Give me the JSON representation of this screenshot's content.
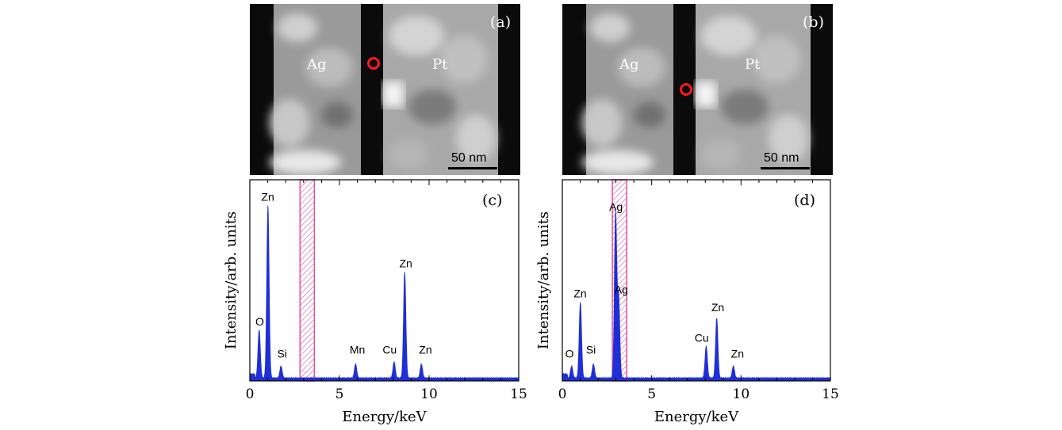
{
  "panels": {
    "a": {
      "label": "(a)",
      "metal_left": "Ag",
      "metal_right": "Pt",
      "scalebar": "50 nm"
    },
    "b": {
      "label": "(b)",
      "metal_left": "Ag",
      "metal_right": "Pt",
      "scalebar": "50 nm"
    }
  },
  "colors": {
    "spectrum": "#1f2fd6",
    "highlight": "#e0509a",
    "marker": "#ff1a1a"
  },
  "chart_data": [
    {
      "type": "area",
      "panel_label": "(c)",
      "xlabel": "Energy/keV",
      "ylabel": "Intensity/arb. units",
      "xlim": [
        0,
        15
      ],
      "xticks": [
        0,
        5,
        10,
        15
      ],
      "highlight_band": [
        2.8,
        3.6
      ],
      "peaks": [
        {
          "x": 0.52,
          "height": 0.24
        },
        {
          "x": 1.01,
          "height": 0.86
        },
        {
          "x": 1.74,
          "height": 0.06
        },
        {
          "x": 5.9,
          "height": 0.07
        },
        {
          "x": 8.05,
          "height": 0.08
        },
        {
          "x": 8.64,
          "height": 0.53
        },
        {
          "x": 9.57,
          "height": 0.07
        }
      ],
      "annotations": [
        {
          "text": "Zn",
          "x": 1.0,
          "y": 0.88
        },
        {
          "text": "O",
          "x": 0.55,
          "y": 0.26
        },
        {
          "text": "Si",
          "x": 1.8,
          "y": 0.1
        },
        {
          "text": "Mn",
          "x": 6.0,
          "y": 0.12
        },
        {
          "text": "Cu",
          "x": 7.8,
          "y": 0.12
        },
        {
          "text": "Zn",
          "x": 8.7,
          "y": 0.55
        },
        {
          "text": "Zn",
          "x": 9.8,
          "y": 0.12
        }
      ]
    },
    {
      "type": "area",
      "panel_label": "(d)",
      "xlabel": "Energy/keV",
      "ylabel": "Intensity/arb. units",
      "xlim": [
        0,
        15
      ],
      "xticks": [
        0,
        5,
        10,
        15
      ],
      "highlight_band": [
        2.8,
        3.6
      ],
      "peaks": [
        {
          "x": 0.52,
          "height": 0.06
        },
        {
          "x": 1.01,
          "height": 0.38
        },
        {
          "x": 1.74,
          "height": 0.07
        },
        {
          "x": 2.98,
          "height": 0.82
        },
        {
          "x": 3.15,
          "height": 0.4
        },
        {
          "x": 8.05,
          "height": 0.16
        },
        {
          "x": 8.64,
          "height": 0.3
        },
        {
          "x": 9.57,
          "height": 0.06
        }
      ],
      "annotations": [
        {
          "text": "Zn",
          "x": 1.0,
          "y": 0.4
        },
        {
          "text": "O",
          "x": 0.4,
          "y": 0.1
        },
        {
          "text": "Si",
          "x": 1.6,
          "y": 0.12
        },
        {
          "text": "Ag",
          "x": 3.0,
          "y": 0.83
        },
        {
          "text": "Ag",
          "x": 3.3,
          "y": 0.42
        },
        {
          "text": "Cu",
          "x": 7.8,
          "y": 0.18
        },
        {
          "text": "Zn",
          "x": 8.7,
          "y": 0.33
        },
        {
          "text": "Zn",
          "x": 9.8,
          "y": 0.1
        }
      ]
    }
  ]
}
